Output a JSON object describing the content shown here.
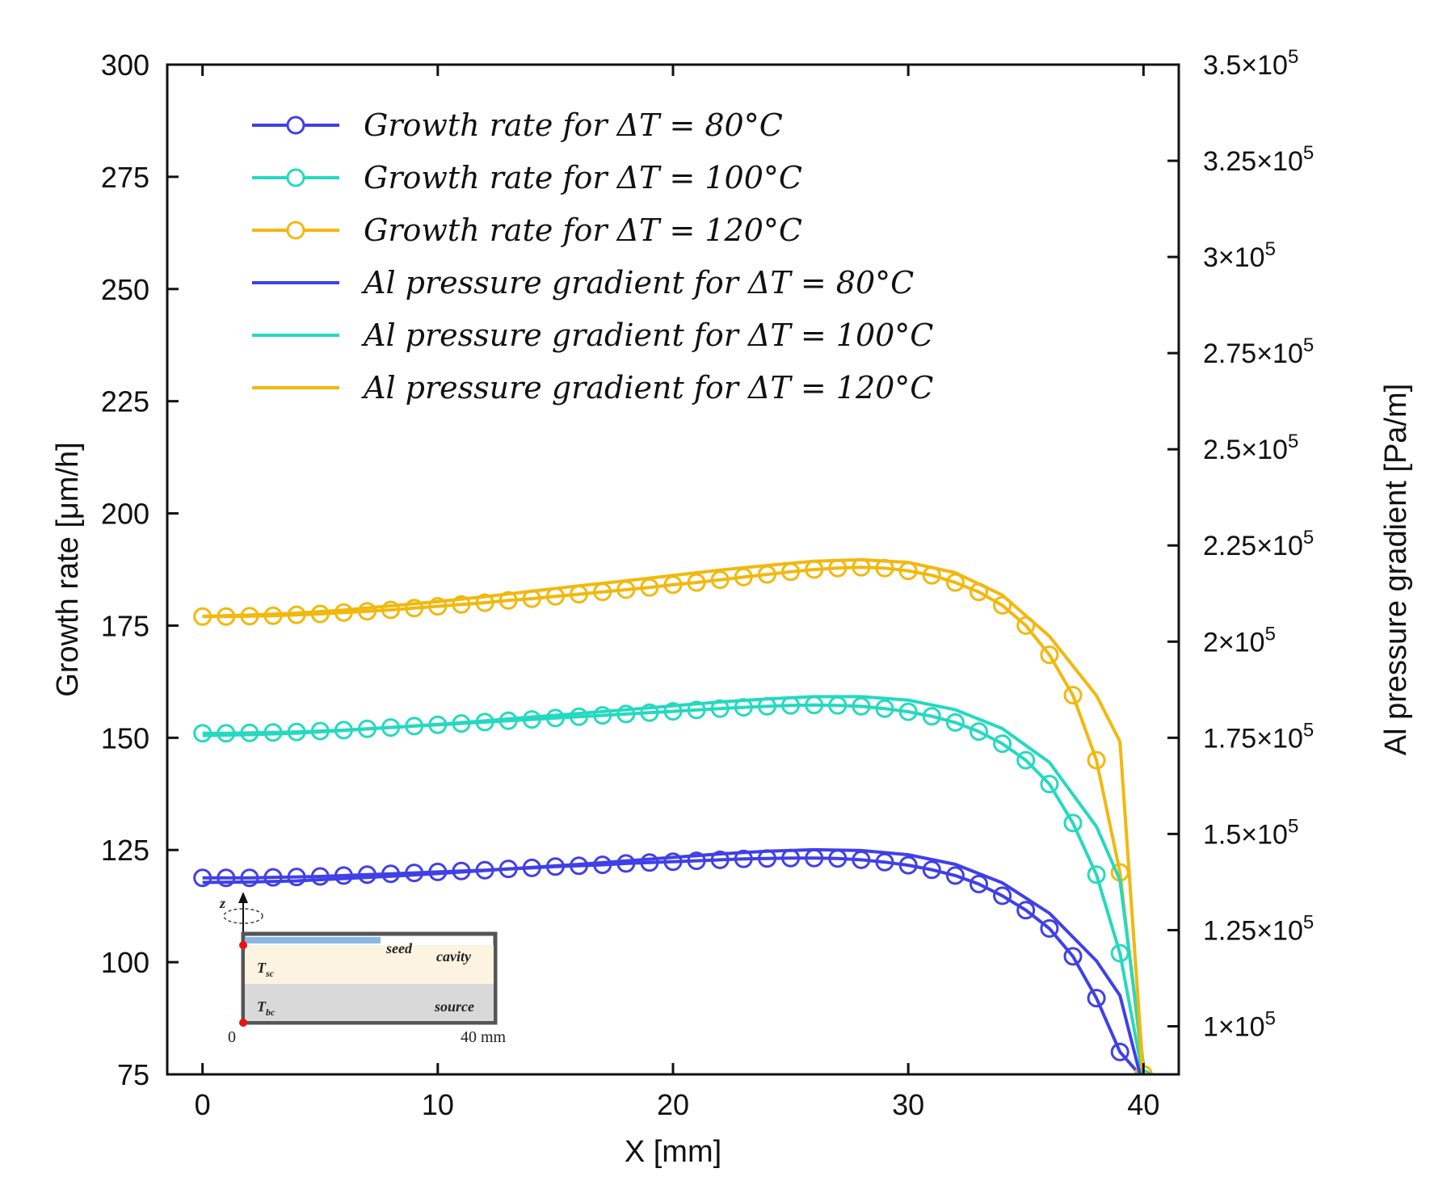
{
  "chart_data": {
    "type": "line",
    "xlabel": "X [mm]",
    "ylabel": "Growth rate [μm/h]",
    "y2label": "Al pressure gradient [Pa/m]",
    "xlim": [
      -1.5,
      41.5
    ],
    "ylim": [
      75,
      300
    ],
    "y2lim": [
      87500,
      350000
    ],
    "x_ticks": [
      0,
      10,
      20,
      30,
      40
    ],
    "y_ticks": [
      75,
      100,
      125,
      150,
      175,
      200,
      225,
      250,
      275,
      300
    ],
    "y2_ticks": [
      {
        "value": 100000,
        "mantissa": "1",
        "exp": "5"
      },
      {
        "value": 125000,
        "mantissa": "1.25",
        "exp": "5"
      },
      {
        "value": 150000,
        "mantissa": "1.5",
        "exp": "5"
      },
      {
        "value": 175000,
        "mantissa": "1.75",
        "exp": "5"
      },
      {
        "value": 200000,
        "mantissa": "2",
        "exp": "5"
      },
      {
        "value": 225000,
        "mantissa": "2.25",
        "exp": "5"
      },
      {
        "value": 250000,
        "mantissa": "2.5",
        "exp": "5"
      },
      {
        "value": 275000,
        "mantissa": "2.75",
        "exp": "5"
      },
      {
        "value": 300000,
        "mantissa": "3",
        "exp": "5"
      },
      {
        "value": 325000,
        "mantissa": "3.25",
        "exp": "5"
      },
      {
        "value": 350000,
        "mantissa": "3.5",
        "exp": "5"
      }
    ],
    "legend_position": "top-left",
    "grid": false,
    "series": [
      {
        "name": "Growth rate for ΔT = 80°C",
        "axis": "left",
        "style": "line-markers",
        "color": "#4040e8",
        "x": [
          0,
          1,
          2,
          3,
          4,
          5,
          6,
          7,
          8,
          9,
          10,
          11,
          12,
          13,
          14,
          15,
          16,
          17,
          18,
          19,
          20,
          21,
          22,
          23,
          24,
          25,
          26,
          27,
          28,
          29,
          30,
          31,
          32,
          33,
          34,
          35,
          36,
          37,
          38,
          39,
          40
        ],
        "y": [
          118.8,
          118.8,
          118.8,
          118.9,
          119.0,
          119.1,
          119.3,
          119.5,
          119.7,
          119.9,
          120.1,
          120.3,
          120.5,
          120.8,
          121.0,
          121.3,
          121.5,
          121.7,
          122.0,
          122.2,
          122.4,
          122.6,
          122.8,
          123.0,
          123.1,
          123.2,
          123.2,
          123.1,
          122.8,
          122.3,
          121.6,
          120.6,
          119.3,
          117.4,
          114.8,
          111.6,
          107.5,
          101.3,
          92.0,
          80.0,
          74.0
        ]
      },
      {
        "name": "Growth rate for ΔT = 100°C",
        "axis": "left",
        "style": "line-markers",
        "color": "#25d9c0",
        "x": [
          0,
          1,
          2,
          3,
          4,
          5,
          6,
          7,
          8,
          9,
          10,
          11,
          12,
          13,
          14,
          15,
          16,
          17,
          18,
          19,
          20,
          21,
          22,
          23,
          24,
          25,
          26,
          27,
          28,
          29,
          30,
          31,
          32,
          33,
          34,
          35,
          36,
          37,
          38,
          39,
          40
        ],
        "y": [
          151.0,
          151.0,
          151.1,
          151.2,
          151.3,
          151.5,
          151.7,
          152.0,
          152.3,
          152.6,
          152.9,
          153.2,
          153.5,
          153.8,
          154.1,
          154.4,
          154.7,
          155.0,
          155.3,
          155.6,
          155.9,
          156.2,
          156.5,
          156.8,
          157.0,
          157.2,
          157.3,
          157.2,
          157.0,
          156.5,
          155.8,
          154.8,
          153.4,
          151.4,
          148.7,
          145.0,
          139.7,
          131.0,
          119.5,
          102.0,
          74.0
        ]
      },
      {
        "name": "Growth rate for ΔT = 120°C",
        "axis": "left",
        "style": "line-markers",
        "color": "#f2b80e",
        "x": [
          0,
          1,
          2,
          3,
          4,
          5,
          6,
          7,
          8,
          9,
          10,
          11,
          12,
          13,
          14,
          15,
          16,
          17,
          18,
          19,
          20,
          21,
          22,
          23,
          24,
          25,
          26,
          27,
          28,
          29,
          30,
          31,
          32,
          33,
          34,
          35,
          36,
          37,
          38,
          39,
          40
        ],
        "y": [
          177.0,
          177.0,
          177.1,
          177.2,
          177.4,
          177.6,
          177.9,
          178.2,
          178.5,
          178.9,
          179.3,
          179.7,
          180.1,
          180.6,
          181.0,
          181.5,
          182.0,
          182.5,
          183.0,
          183.5,
          184.1,
          184.6,
          185.2,
          185.8,
          186.4,
          187.0,
          187.5,
          187.8,
          188.0,
          187.8,
          187.2,
          186.2,
          184.6,
          182.5,
          179.5,
          175.0,
          168.5,
          159.5,
          145.0,
          120.0,
          75.0
        ]
      },
      {
        "name": "Al pressure gradient for ΔT = 80°C",
        "axis": "right",
        "style": "line",
        "color": "#4040e8",
        "x": [
          0,
          2,
          4,
          6,
          8,
          10,
          12,
          14,
          16,
          18,
          20,
          22,
          24,
          26,
          28,
          30,
          32,
          34,
          36,
          38,
          39,
          40
        ],
        "y": [
          137400,
          137500,
          137800,
          138400,
          139000,
          139700,
          140500,
          141300,
          142100,
          143000,
          143900,
          144800,
          145500,
          145900,
          145700,
          144600,
          142100,
          137300,
          129400,
          117000,
          108000,
          84000
        ]
      },
      {
        "name": "Al pressure gradient for ΔT = 100°C",
        "axis": "right",
        "style": "line",
        "color": "#25d9c0",
        "x": [
          0,
          2,
          4,
          6,
          8,
          10,
          12,
          14,
          16,
          18,
          20,
          22,
          24,
          26,
          28,
          30,
          32,
          34,
          36,
          38,
          39,
          40
        ],
        "y": [
          175600,
          175800,
          176200,
          176900,
          177700,
          178500,
          179400,
          180400,
          181300,
          182300,
          183300,
          184300,
          185100,
          185700,
          185700,
          184800,
          182300,
          177400,
          168600,
          151900,
          138000,
          90000
        ]
      },
      {
        "name": "Al pressure gradient for ΔT = 120°C",
        "axis": "right",
        "style": "line",
        "color": "#f2b80e",
        "x": [
          0,
          2,
          4,
          6,
          8,
          10,
          12,
          14,
          16,
          18,
          20,
          22,
          24,
          26,
          28,
          30,
          32,
          34,
          36,
          38,
          39,
          40
        ],
        "y": [
          206600,
          206900,
          207400,
          208200,
          209300,
          210400,
          211700,
          213100,
          214500,
          215800,
          217200,
          218600,
          219800,
          220900,
          221300,
          220600,
          217900,
          212100,
          201400,
          186000,
          174000,
          87000
        ]
      }
    ],
    "inset": {
      "labels": {
        "z": "z",
        "seed": "seed",
        "cavity": "cavity",
        "tsc": "T",
        "tsc_sub": "sc",
        "tbc": "T",
        "tbc_sub": "bc",
        "source": "source",
        "origin": "0",
        "length": "40 mm"
      }
    }
  }
}
